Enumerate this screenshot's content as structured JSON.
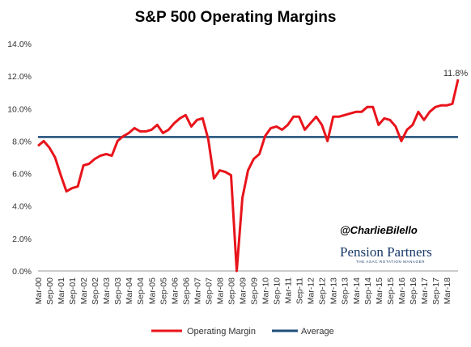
{
  "chart_data": {
    "type": "line",
    "title": "S&P 500 Operating Margins",
    "xlabel": "",
    "ylabel": "",
    "ylim": [
      0,
      14
    ],
    "yticks": [
      "0.0%",
      "2.0%",
      "4.0%",
      "6.0%",
      "8.0%",
      "10.0%",
      "12.0%",
      "14.0%"
    ],
    "xticks": [
      "Mar-00",
      "Sep-00",
      "Mar-01",
      "Sep-01",
      "Mar-02",
      "Sep-02",
      "Mar-03",
      "Sep-03",
      "Mar-04",
      "Sep-04",
      "Mar-05",
      "Sep-05",
      "Mar-06",
      "Sep-06",
      "Mar-07",
      "Sep-07",
      "Mar-08",
      "Sep-08",
      "Mar-09",
      "Sep-09",
      "Mar-10",
      "Sep-10",
      "Mar-11",
      "Sep-11",
      "Mar-12",
      "Sep-12",
      "Mar-13",
      "Sep-13",
      "Mar-14",
      "Sep-14",
      "Mar-15",
      "Sep-15",
      "Mar-16",
      "Sep-16",
      "Mar-17",
      "Sep-17",
      "Mar-18"
    ],
    "series": [
      {
        "name": "Operating Margin",
        "color": "#e8141b",
        "values": [
          7.7,
          8.0,
          7.6,
          7.0,
          5.9,
          4.9,
          5.1,
          5.2,
          6.5,
          6.6,
          6.9,
          7.1,
          7.2,
          7.1,
          8.0,
          8.3,
          8.5,
          8.8,
          8.6,
          8.6,
          8.7,
          9.0,
          8.5,
          8.7,
          9.1,
          9.4,
          9.6,
          8.9,
          9.3,
          9.4,
          8.1,
          5.7,
          6.2,
          6.1,
          5.9,
          0.0,
          4.5,
          6.2,
          6.9,
          7.2,
          8.3,
          8.8,
          8.9,
          8.7,
          9.0,
          9.5,
          9.5,
          8.7,
          9.1,
          9.5,
          9.0,
          8.0,
          9.5,
          9.5,
          9.6,
          9.7,
          9.8,
          9.8,
          10.1,
          10.1,
          9.0,
          9.4,
          9.3,
          8.9,
          8.0,
          8.7,
          9.0,
          9.8,
          9.3,
          9.8,
          10.1,
          10.2,
          10.2,
          10.3,
          11.8
        ]
      },
      {
        "name": "Average",
        "color": "#1f4e79",
        "values": [
          8.25
        ]
      }
    ],
    "annotations": [
      {
        "text": "11.8%"
      }
    ],
    "legend": "bottom",
    "grid": false
  },
  "watermark": {
    "handle": "@CharlieBilello",
    "logo": "Pension Partners",
    "logo_sub": "THE ASAC ROTATION MANAGER"
  }
}
